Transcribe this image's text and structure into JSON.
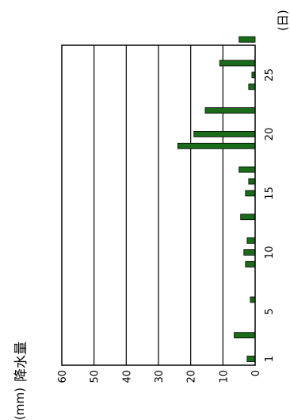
{
  "chart_data": {
    "type": "bar",
    "title": "",
    "unit_label": "(mm)",
    "ylabel": "降水量",
    "xlabel": "(日)",
    "ylim": [
      0,
      60
    ],
    "y_ticks": [
      "0",
      "10",
      "20",
      "30",
      "40",
      "50",
      "60"
    ],
    "x_ticks": [
      "1",
      "5",
      "10",
      "15",
      "20",
      "25"
    ],
    "x_tick_values": [
      1,
      5,
      10,
      15,
      20,
      25
    ],
    "bar_color": "#1a6b1a",
    "grid": true,
    "categories": [
      1,
      2,
      3,
      4,
      5,
      6,
      7,
      8,
      9,
      10,
      11,
      12,
      13,
      14,
      15,
      16,
      17,
      18,
      19,
      20,
      21,
      22,
      23,
      24,
      25,
      26,
      27,
      28
    ],
    "values": [
      2.5,
      0,
      6.5,
      0,
      0,
      1.5,
      0,
      0,
      3,
      3.5,
      2.5,
      0,
      4.5,
      0,
      3,
      2,
      5,
      0,
      24,
      19,
      0,
      15.5,
      0,
      2,
      1,
      11,
      0,
      5
    ]
  }
}
